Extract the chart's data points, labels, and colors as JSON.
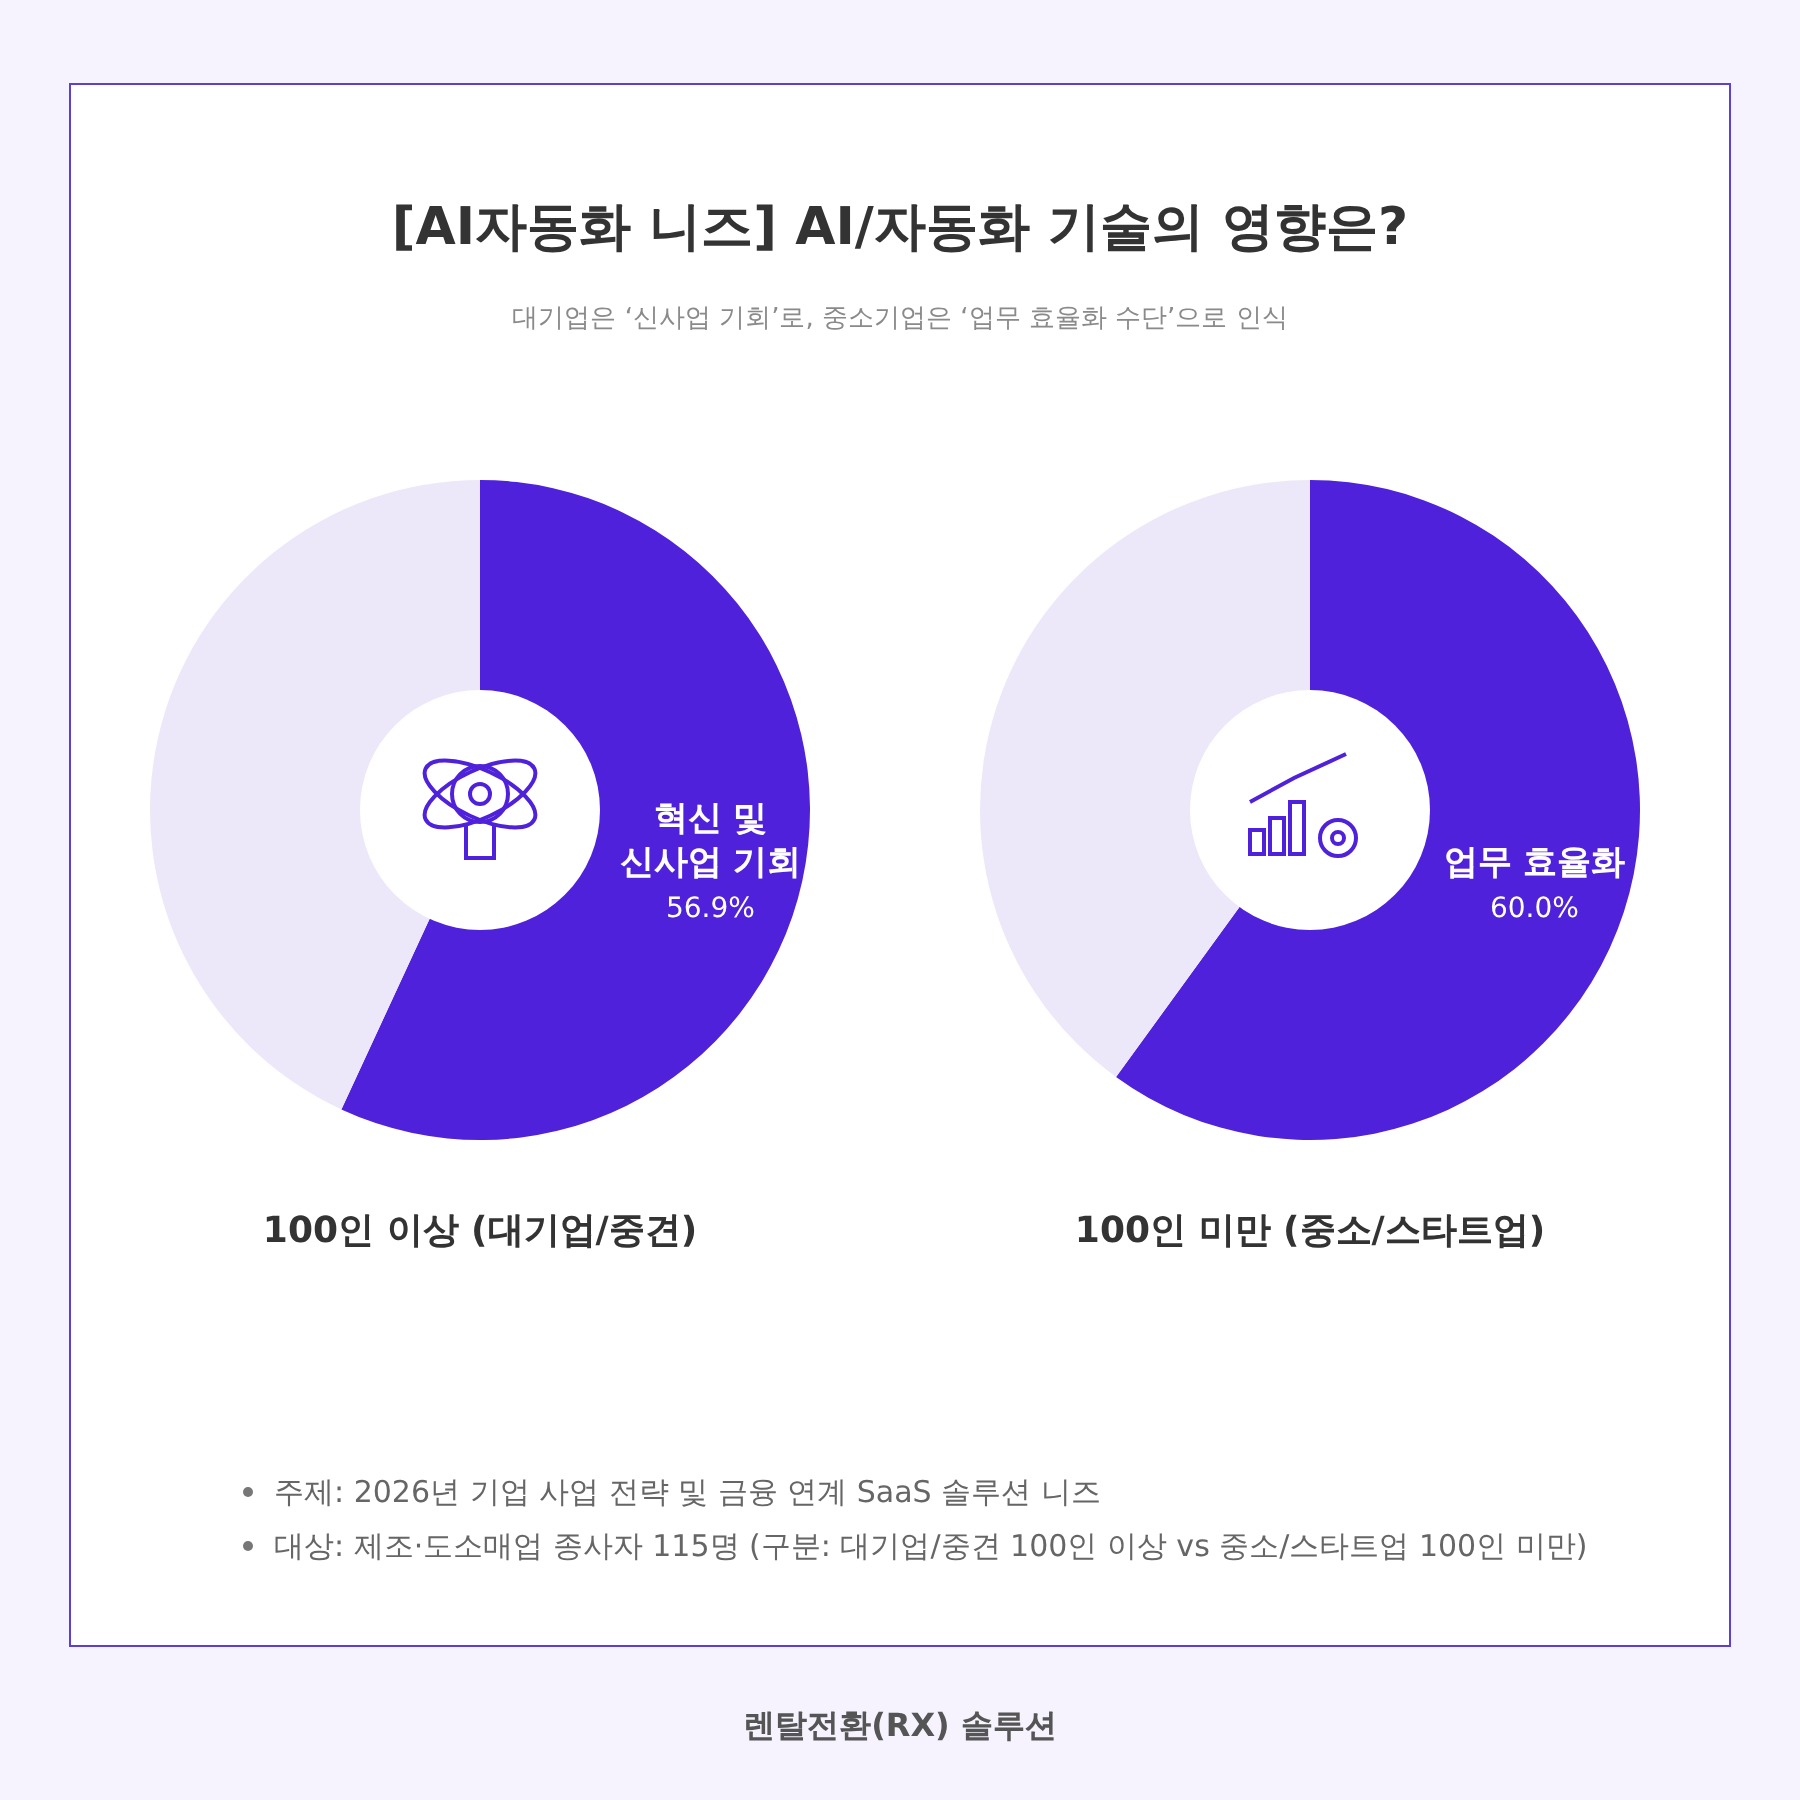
{
  "chart_data": [
    {
      "type": "donut",
      "title": "[AI자동화 니즈] AI/자동화 기술의 영향은?",
      "subtitle": "대기업은 ‘신사업 기회’로, 중소기업은 ‘업무 효율화 수단’으로 인식",
      "xlabel": "100인 이상 (대기업/중견)",
      "categories": [
        "혁신 및 신사업 기회",
        null
      ],
      "values": [
        56.9,
        43.1
      ],
      "colors": [
        "#4f21db",
        "#ede8f9"
      ],
      "value_labels": [
        "56.9%",
        null
      ]
    },
    {
      "type": "donut",
      "xlabel": "100인 미만 (중소/스타트업)",
      "categories": [
        "업무 효율화",
        null
      ],
      "values": [
        60.0,
        40.0
      ],
      "colors": [
        "#4f21db",
        "#ede8f9"
      ],
      "value_labels": [
        "60.0%",
        null
      ],
      "annotations": [
        "주제: 2026년 기업 사업 전략 및 금융 연계 SaaS 솔루션 니즈",
        "대상: 제조·도소매업 종사자 115명 (구분: 대기업/중견 100인 이상 vs 중소/스타트업 100인 미만)",
        "렌탈전환(RX) 솔루션"
      ]
    }
  ]
}
